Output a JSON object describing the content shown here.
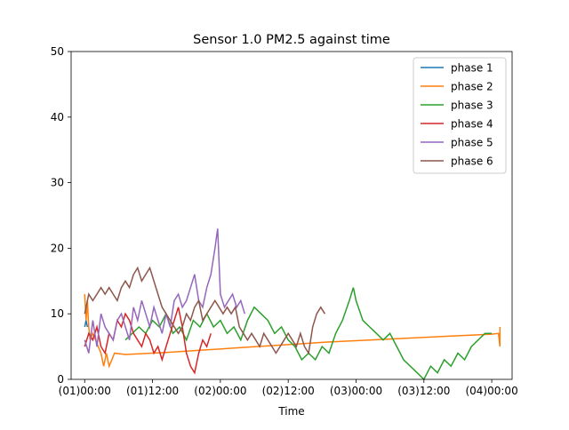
{
  "chart_data": {
    "type": "line",
    "title": "Sensor 1.0 PM2.5 against  time",
    "xlabel": "Time",
    "ylabel": "",
    "xlim": [
      -0.1,
      3.15
    ],
    "ylim": [
      0,
      50
    ],
    "x_ticks": [
      {
        "value": 0.0,
        "label": "(01)00:00"
      },
      {
        "value": 0.5,
        "label": "(01)12:00"
      },
      {
        "value": 1.0,
        "label": "(02)00:00"
      },
      {
        "value": 1.5,
        "label": "(02)12:00"
      },
      {
        "value": 2.0,
        "label": "(03)00:00"
      },
      {
        "value": 2.5,
        "label": "(03)12:00"
      },
      {
        "value": 3.0,
        "label": "(04)00:00"
      }
    ],
    "y_ticks": [
      0,
      10,
      20,
      30,
      40,
      50
    ],
    "legend_position": "top-right",
    "grid": false,
    "series": [
      {
        "name": "phase 1",
        "color": "#1f77b4",
        "x": [
          0.0,
          0.01,
          0.02
        ],
        "y": [
          8,
          9,
          8
        ]
      },
      {
        "name": "phase 2",
        "color": "#ff7f0e",
        "x": [
          0.0,
          0.01,
          0.02,
          0.03,
          0.04,
          0.06,
          0.08,
          0.1,
          0.12,
          0.14,
          0.16,
          0.18,
          0.2,
          0.22,
          0.3,
          0.6,
          0.9,
          1.2,
          1.5,
          1.8,
          2.1,
          2.4,
          2.7,
          3.0,
          3.05,
          3.06,
          3.06
        ],
        "y": [
          13,
          9,
          12,
          8,
          6,
          7,
          6,
          5,
          4,
          2,
          4,
          2,
          3,
          4,
          3.8,
          4.1,
          4.5,
          4.9,
          5.3,
          5.7,
          6.0,
          6.3,
          6.6,
          6.9,
          7.0,
          5,
          8
        ]
      },
      {
        "name": "phase 3",
        "color": "#2ca02c",
        "x": [
          0.3,
          0.35,
          0.4,
          0.45,
          0.5,
          0.55,
          0.6,
          0.65,
          0.7,
          0.75,
          0.8,
          0.85,
          0.9,
          0.95,
          1.0,
          1.05,
          1.1,
          1.15,
          1.2,
          1.25,
          1.3,
          1.35,
          1.4,
          1.45,
          1.5,
          1.55,
          1.6,
          1.65,
          1.7,
          1.75,
          1.8,
          1.85,
          1.9,
          1.95,
          1.98,
          2.0,
          2.05,
          2.1,
          2.15,
          2.2,
          2.25,
          2.3,
          2.35,
          2.4,
          2.45,
          2.5,
          2.55,
          2.6,
          2.65,
          2.7,
          2.75,
          2.8,
          2.85,
          2.9,
          2.95,
          3.0
        ],
        "y": [
          6,
          7,
          8,
          7,
          9,
          8,
          10,
          7,
          8,
          6,
          9,
          8,
          10,
          8,
          9,
          7,
          8,
          6,
          9,
          11,
          10,
          9,
          7,
          8,
          6,
          5,
          3,
          4,
          3,
          5,
          4,
          7,
          9,
          12,
          14,
          12,
          9,
          8,
          7,
          6,
          7,
          5,
          3,
          2,
          1,
          0,
          2,
          1,
          3,
          2,
          4,
          3,
          5,
          6,
          7,
          7
        ]
      },
      {
        "name": "phase 4",
        "color": "#d62728",
        "x": [
          0.0,
          0.03,
          0.06,
          0.09,
          0.12,
          0.15,
          0.18,
          0.21,
          0.24,
          0.27,
          0.3,
          0.33,
          0.36,
          0.39,
          0.42,
          0.45,
          0.48,
          0.51,
          0.54,
          0.57,
          0.6,
          0.63,
          0.66,
          0.69,
          0.72,
          0.75,
          0.78,
          0.81,
          0.84,
          0.87,
          0.9,
          0.93
        ],
        "y": [
          5,
          7,
          6,
          8,
          5,
          4,
          7,
          6,
          9,
          8,
          10,
          9,
          7,
          6,
          5,
          7,
          6,
          4,
          5,
          3,
          5,
          7,
          9,
          11,
          8,
          4,
          2,
          1,
          4,
          6,
          5,
          7
        ]
      },
      {
        "name": "phase 5",
        "color": "#9467bd",
        "x": [
          0.0,
          0.03,
          0.06,
          0.09,
          0.12,
          0.15,
          0.18,
          0.21,
          0.24,
          0.27,
          0.3,
          0.33,
          0.36,
          0.39,
          0.42,
          0.45,
          0.48,
          0.51,
          0.54,
          0.57,
          0.6,
          0.63,
          0.66,
          0.69,
          0.72,
          0.75,
          0.78,
          0.81,
          0.84,
          0.87,
          0.9,
          0.93,
          0.96,
          0.98,
          1.0,
          1.03,
          1.06,
          1.09,
          1.12,
          1.15,
          1.18
        ],
        "y": [
          6,
          4,
          9,
          5,
          10,
          8,
          7,
          6,
          9,
          10,
          8,
          6,
          11,
          9,
          12,
          10,
          8,
          11,
          9,
          7,
          10,
          8,
          12,
          13,
          11,
          12,
          14,
          16,
          12,
          11,
          14,
          16,
          20,
          23,
          13,
          11,
          12,
          13,
          11,
          12,
          10
        ]
      },
      {
        "name": "phase 6",
        "color": "#8c564b",
        "x": [
          0.0,
          0.03,
          0.06,
          0.09,
          0.12,
          0.15,
          0.18,
          0.21,
          0.24,
          0.27,
          0.3,
          0.33,
          0.36,
          0.39,
          0.42,
          0.45,
          0.48,
          0.51,
          0.54,
          0.57,
          0.6,
          0.63,
          0.66,
          0.69,
          0.72,
          0.75,
          0.78,
          0.81,
          0.84,
          0.87,
          0.9,
          0.93,
          0.96,
          0.99,
          1.02,
          1.05,
          1.08,
          1.11,
          1.14,
          1.17,
          1.2,
          1.23,
          1.26,
          1.29,
          1.32,
          1.35,
          1.38,
          1.41,
          1.44,
          1.47,
          1.5,
          1.53,
          1.56,
          1.59,
          1.62,
          1.65,
          1.68,
          1.71,
          1.74,
          1.77
        ],
        "y": [
          10,
          13,
          12,
          13,
          14,
          13,
          14,
          13,
          12,
          14,
          15,
          14,
          16,
          17,
          15,
          16,
          17,
          15,
          13,
          11,
          10,
          9,
          8,
          7,
          8,
          10,
          9,
          11,
          12,
          9,
          10,
          11,
          12,
          11,
          10,
          11,
          10,
          11,
          8,
          7,
          6,
          7,
          6,
          5,
          7,
          6,
          5,
          4,
          5,
          6,
          7,
          6,
          5,
          7,
          5,
          4,
          8,
          10,
          11,
          10
        ]
      }
    ]
  }
}
